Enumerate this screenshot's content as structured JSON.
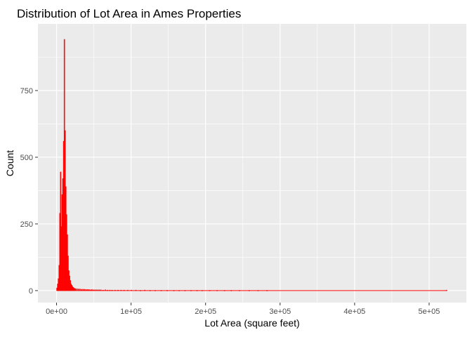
{
  "chart_data": {
    "type": "bar",
    "title": "Distribution of Lot Area in Ames Properties",
    "xlabel": "Lot Area (square feet)",
    "ylabel": "Count",
    "xlim": [
      -25000,
      550000
    ],
    "ylim": [
      -45,
      1000
    ],
    "x_ticks": [
      {
        "value": 0,
        "label": "0e+00"
      },
      {
        "value": 100000,
        "label": "1e+05"
      },
      {
        "value": 200000,
        "label": "2e+05"
      },
      {
        "value": 300000,
        "label": "3e+05"
      },
      {
        "value": 400000,
        "label": "4e+05"
      },
      {
        "value": 500000,
        "label": "5e+05"
      }
    ],
    "y_ticks": [
      {
        "value": 0,
        "label": "0"
      },
      {
        "value": 250,
        "label": "250"
      },
      {
        "value": 500,
        "label": "500"
      },
      {
        "value": 750,
        "label": "750"
      }
    ],
    "bin_width": 1000,
    "x": [
      500,
      1500,
      2500,
      3500,
      4500,
      5500,
      6500,
      7500,
      8500,
      9500,
      10500,
      11500,
      12500,
      13500,
      14500,
      15500,
      16500,
      17500,
      18500,
      19500,
      20500,
      21500,
      22500,
      23500,
      24500,
      25500,
      27500,
      29500,
      31500,
      33500,
      35500,
      37500,
      39500,
      41500,
      43500,
      45500,
      47500,
      49500,
      51500,
      53500,
      55500,
      57500,
      59500,
      62500,
      65500,
      68500,
      71500,
      74500,
      78500,
      82500,
      86500,
      90500,
      95500,
      100500,
      106500,
      112500,
      118500,
      125500,
      132500,
      140500,
      148500,
      157500,
      164500,
      172500,
      180500,
      188500,
      195500,
      205500,
      215500,
      225500,
      234500,
      245500,
      258500,
      270500,
      282500,
      523500
    ],
    "values": [
      10,
      25,
      45,
      95,
      290,
      445,
      240,
      360,
      420,
      560,
      942,
      600,
      390,
      285,
      210,
      130,
      75,
      55,
      38,
      25,
      20,
      15,
      12,
      9,
      8,
      7,
      7,
      6,
      6,
      5,
      5,
      5,
      4,
      4,
      4,
      3,
      4,
      3,
      3,
      3,
      3,
      3,
      3,
      2,
      3,
      2,
      2,
      2,
      2,
      2,
      2,
      2,
      2,
      2,
      2,
      1,
      2,
      1,
      1,
      1,
      1,
      1,
      1,
      1,
      1,
      1,
      1,
      1,
      1,
      1,
      1,
      1,
      1,
      1,
      1,
      2
    ],
    "grid": true,
    "colors": {
      "bar_fill": "#ff0000",
      "panel_background": "#ebebeb",
      "grid": "#ffffff",
      "text": "#000000",
      "tick_text": "#4d4d4d",
      "tick_mark": "#333333"
    }
  }
}
